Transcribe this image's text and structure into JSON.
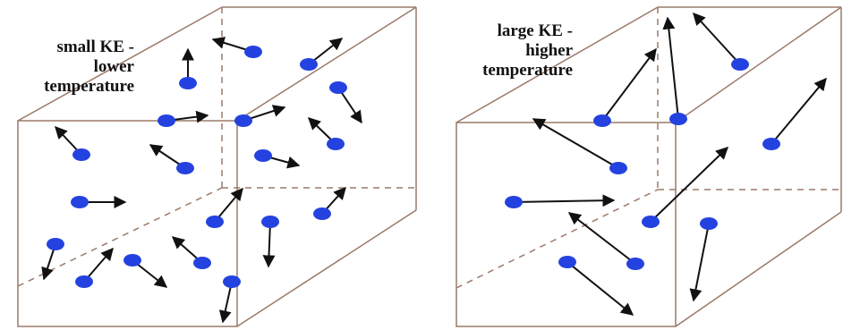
{
  "colors": {
    "box_edge": "#9a7a6a",
    "particle": "#2442e0",
    "arrow": "#111111"
  },
  "panels": [
    {
      "label_lines": [
        "small KE -",
        "lower",
        "temperature"
      ]
    },
    {
      "label_lines": [
        "large KE -",
        "higher",
        "temperature"
      ]
    }
  ]
}
